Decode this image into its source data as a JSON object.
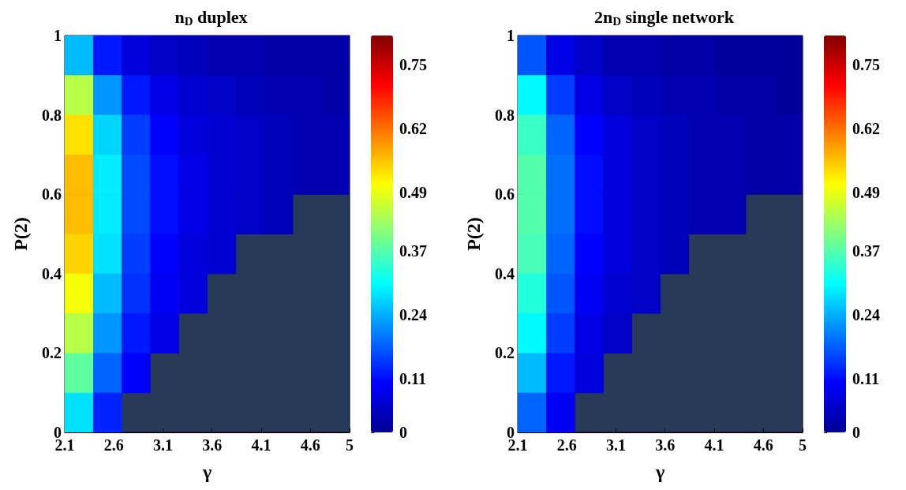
{
  "chart_data": [
    {
      "type": "heatmap",
      "title": "n$_{D}$ duplex",
      "xlabel": "γ",
      "ylabel": "P(2)",
      "cells": [
        [
          0.25,
          0.12,
          0.07,
          0.05,
          0.04,
          0.03,
          0.03,
          0.02,
          0.02,
          0.02
        ],
        [
          0.45,
          0.22,
          0.12,
          0.08,
          0.06,
          0.05,
          0.04,
          0.03,
          0.03,
          0.02
        ],
        [
          0.53,
          0.27,
          0.15,
          0.1,
          0.07,
          0.06,
          0.05,
          0.04,
          0.03,
          0.03
        ],
        [
          0.56,
          0.29,
          0.16,
          0.11,
          0.08,
          0.06,
          0.05,
          0.04,
          0.03,
          0.03
        ],
        [
          0.56,
          0.29,
          0.16,
          0.11,
          0.08,
          0.06,
          0.05,
          0.04,
          null,
          null
        ],
        [
          0.54,
          0.28,
          0.15,
          0.1,
          0.07,
          0.06,
          null,
          null,
          null,
          null
        ],
        [
          0.5,
          0.25,
          0.14,
          0.09,
          0.07,
          null,
          null,
          null,
          null,
          null
        ],
        [
          0.45,
          0.22,
          0.12,
          0.08,
          null,
          null,
          null,
          null,
          null,
          null
        ],
        [
          0.38,
          0.18,
          0.1,
          null,
          null,
          null,
          null,
          null,
          null,
          null
        ],
        [
          0.28,
          0.13,
          null,
          null,
          null,
          null,
          null,
          null,
          null,
          null
        ]
      ],
      "xlim": [
        2.1,
        5
      ],
      "xticks": [
        2.1,
        2.6,
        3.1,
        3.6,
        4.1,
        4.6,
        5
      ],
      "ylim": [
        0,
        1
      ],
      "yticks": [
        0,
        0.2,
        0.4,
        0.6,
        0.8,
        1
      ],
      "clim": [
        0,
        0.81
      ],
      "cticks": [
        0,
        0.11,
        0.24,
        0.37,
        0.49,
        0.62,
        0.75
      ]
    },
    {
      "type": "heatmap",
      "title": "2n$_{D}$ single network",
      "xlabel": "γ",
      "ylabel": "P(2)",
      "cells": [
        [
          0.17,
          0.08,
          0.05,
          0.03,
          0.03,
          0.02,
          0.02,
          0.01,
          0.01,
          0.01
        ],
        [
          0.3,
          0.15,
          0.08,
          0.05,
          0.04,
          0.03,
          0.03,
          0.02,
          0.02,
          0.01
        ],
        [
          0.35,
          0.18,
          0.1,
          0.07,
          0.05,
          0.04,
          0.03,
          0.03,
          0.02,
          0.02
        ],
        [
          0.37,
          0.19,
          0.11,
          0.07,
          0.05,
          0.04,
          0.03,
          0.03,
          0.02,
          0.02
        ],
        [
          0.37,
          0.19,
          0.11,
          0.07,
          0.05,
          0.04,
          0.03,
          0.03,
          null,
          null
        ],
        [
          0.36,
          0.18,
          0.1,
          0.07,
          0.05,
          0.04,
          null,
          null,
          null,
          null
        ],
        [
          0.33,
          0.17,
          0.09,
          0.06,
          0.05,
          null,
          null,
          null,
          null,
          null
        ],
        [
          0.3,
          0.15,
          0.08,
          0.05,
          null,
          null,
          null,
          null,
          null,
          null
        ],
        [
          0.25,
          0.12,
          0.07,
          null,
          null,
          null,
          null,
          null,
          null,
          null
        ],
        [
          0.18,
          0.09,
          null,
          null,
          null,
          null,
          null,
          null,
          null,
          null
        ]
      ],
      "xlim": [
        2.1,
        5
      ],
      "xticks": [
        2.1,
        2.6,
        3.1,
        3.6,
        4.1,
        4.6,
        5
      ],
      "ylim": [
        0,
        1
      ],
      "yticks": [
        0,
        0.2,
        0.4,
        0.6,
        0.8,
        1
      ],
      "clim": [
        0,
        0.81
      ],
      "cticks": [
        0,
        0.11,
        0.24,
        0.37,
        0.49,
        0.62,
        0.75
      ]
    }
  ]
}
